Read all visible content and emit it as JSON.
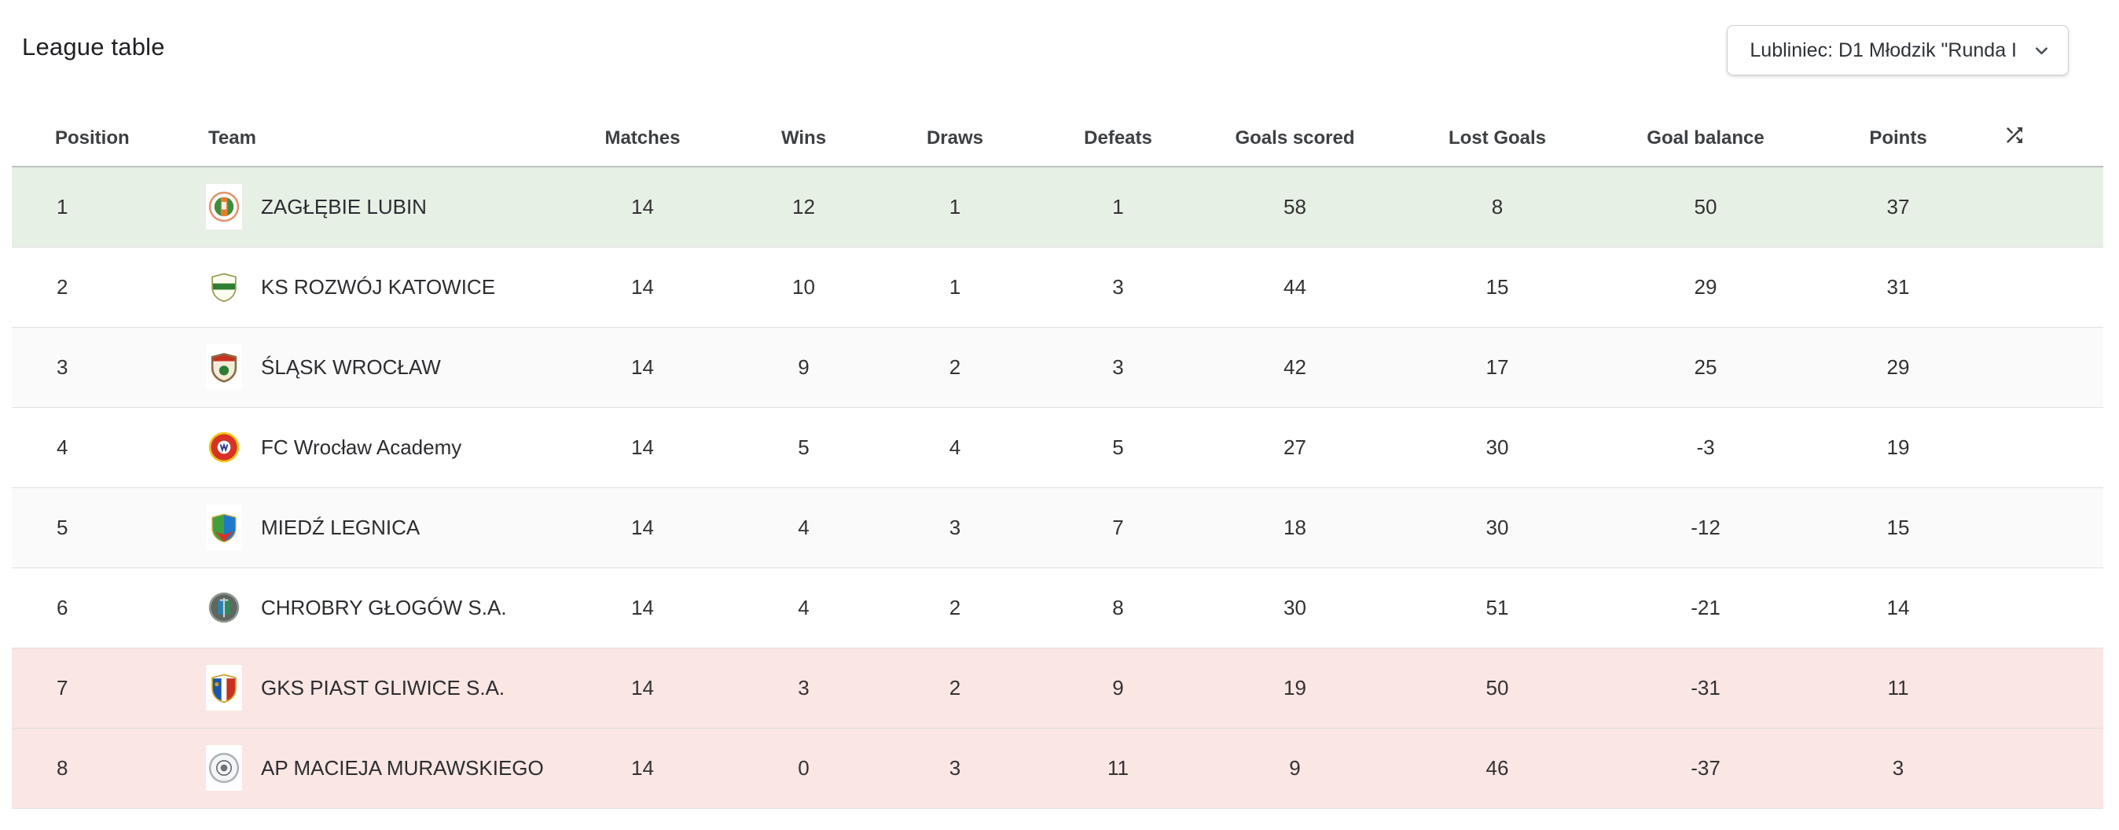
{
  "page": {
    "title": "League table"
  },
  "filter": {
    "selected": "Lubliniec: D1 Młodzik \"Runda I",
    "icon": "chevron-down"
  },
  "table": {
    "headers": {
      "position": "Position",
      "team": "Team",
      "matches": "Matches",
      "wins": "Wins",
      "draws": "Draws",
      "defeats": "Defeats",
      "goals_scored": "Goals scored",
      "lost_goals": "Lost Goals",
      "goal_balance": "Goal balance",
      "points": "Points",
      "sort_icon": "shuffle"
    },
    "colors": {
      "promotion_bg": "#e7f0e5",
      "relegation_bg": "#fae6e3",
      "stripe_bg": "#fafafa",
      "row_border": "#e0e0e0",
      "table_top_border": "#bfc3bf",
      "header_text": "#3d4043",
      "cell_text": "#323232"
    },
    "rows": [
      {
        "position": "1",
        "team": "ZAGŁĘBIE LUBIN",
        "matches": "14",
        "wins": "12",
        "draws": "1",
        "defeats": "1",
        "goals_scored": "58",
        "lost_goals": "8",
        "goal_balance": "50",
        "points": "37",
        "highlight": "promotion",
        "badge": {
          "name": "zaglebie-lubin-crest",
          "shape": "circle",
          "pattern": "stripes",
          "colors": [
            "#e4936e",
            "#ffffff",
            "#3d8f3d",
            "#e77b2e"
          ]
        }
      },
      {
        "position": "2",
        "team": "KS ROZWÓJ KATOWICE",
        "matches": "14",
        "wins": "10",
        "draws": "1",
        "defeats": "3",
        "goals_scored": "44",
        "lost_goals": "15",
        "goal_balance": "29",
        "points": "31",
        "highlight": "none",
        "badge": {
          "name": "ks-rozwoj-katowice-crest",
          "shape": "shield",
          "pattern": "band",
          "colors": [
            "#fbfbee",
            "#2e7d32",
            "#9a9a55"
          ]
        }
      },
      {
        "position": "3",
        "team": "ŚLĄSK WROCŁAW",
        "matches": "14",
        "wins": "9",
        "draws": "2",
        "defeats": "3",
        "goals_scored": "42",
        "lost_goals": "17",
        "goal_balance": "25",
        "points": "29",
        "highlight": "stripe",
        "badge": {
          "name": "slask-wroclaw-crest",
          "shape": "shield",
          "pattern": "chief",
          "colors": [
            "#f2ecd9",
            "#c8311f",
            "#8a6b45",
            "#2e7d32"
          ]
        }
      },
      {
        "position": "4",
        "team": "FC Wrocław Academy",
        "matches": "14",
        "wins": "5",
        "draws": "4",
        "defeats": "5",
        "goals_scored": "27",
        "lost_goals": "30",
        "goal_balance": "-3",
        "points": "19",
        "highlight": "none",
        "badge": {
          "name": "fc-wroclaw-academy-crest",
          "shape": "circle",
          "pattern": "ring",
          "colors": [
            "#f2c514",
            "#d63227",
            "#ffffff",
            "#2b3a8f"
          ]
        }
      },
      {
        "position": "5",
        "team": "MIEDŹ LEGNICA",
        "matches": "14",
        "wins": "4",
        "draws": "3",
        "defeats": "7",
        "goals_scored": "18",
        "lost_goals": "30",
        "goal_balance": "-12",
        "points": "15",
        "highlight": "stripe",
        "badge": {
          "name": "miedz-legnica-crest",
          "shape": "shield",
          "pattern": "split",
          "colors": [
            "#3fa03f",
            "#1f78c8",
            "#d63227",
            "#caa53c"
          ]
        }
      },
      {
        "position": "6",
        "team": "CHROBRY GŁOGÓW S.A.",
        "matches": "14",
        "wins": "4",
        "draws": "2",
        "defeats": "8",
        "goals_scored": "30",
        "lost_goals": "51",
        "goal_balance": "-21",
        "points": "14",
        "highlight": "none",
        "badge": {
          "name": "chrobry-glogow-crest",
          "shape": "circle",
          "pattern": "emblem",
          "colors": [
            "#8f948f",
            "#5f665f",
            "#2f7fae",
            "#2e8b57"
          ]
        }
      },
      {
        "position": "7",
        "team": "GKS PIAST GLIWICE S.A.",
        "matches": "14",
        "wins": "3",
        "draws": "2",
        "defeats": "9",
        "goals_scored": "19",
        "lost_goals": "50",
        "goal_balance": "-31",
        "points": "11",
        "highlight": "relegation",
        "badge": {
          "name": "gks-piast-gliwice-crest",
          "shape": "shield",
          "pattern": "column",
          "colors": [
            "#1c57ae",
            "#c8311f",
            "#ffffff",
            "#c9a227"
          ]
        }
      },
      {
        "position": "8",
        "team": "AP MACIEJA MURAWSKIEGO",
        "matches": "14",
        "wins": "0",
        "draws": "3",
        "defeats": "11",
        "goals_scored": "9",
        "lost_goals": "46",
        "goal_balance": "-37",
        "points": "3",
        "highlight": "relegation",
        "badge": {
          "name": "ap-macieja-murawskiego-crest",
          "shape": "circle",
          "pattern": "seal",
          "colors": [
            "#aeb4b9",
            "#f4f5f6",
            "#6d7378"
          ]
        }
      }
    ]
  }
}
